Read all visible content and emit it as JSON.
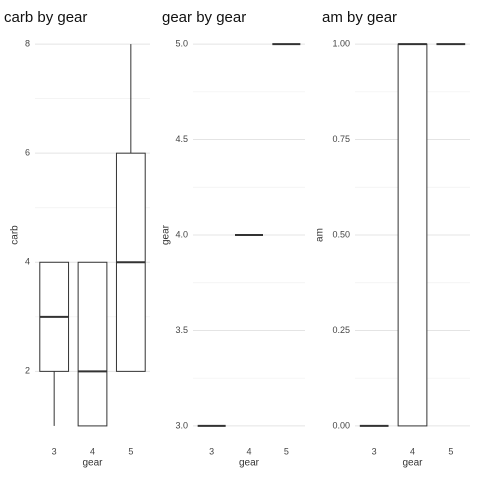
{
  "chart_data": [
    {
      "type": "box",
      "title": "carb by gear",
      "xlabel": "gear",
      "ylabel": "carb",
      "categories": [
        "3",
        "4",
        "5"
      ],
      "min": [
        1,
        1,
        2
      ],
      "q1": [
        2,
        1,
        2
      ],
      "median": [
        3,
        2,
        4
      ],
      "q3": [
        4,
        4,
        6
      ],
      "max": [
        4,
        4,
        8
      ],
      "ylim": [
        0.65,
        8.35
      ],
      "yticks": [
        2,
        4,
        6,
        8
      ],
      "grid": true,
      "color": "#333333"
    },
    {
      "type": "box",
      "title": "gear by gear",
      "xlabel": "gear",
      "ylabel": "gear",
      "categories": [
        "3",
        "4",
        "5"
      ],
      "min": [
        3,
        4,
        5
      ],
      "q1": [
        3,
        4,
        5
      ],
      "median": [
        3,
        4,
        5
      ],
      "q3": [
        3,
        4,
        5
      ],
      "max": [
        3,
        4,
        5
      ],
      "ylim": [
        2.9,
        5.1
      ],
      "yticks": [
        {
          "value": 3,
          "label": "3.0"
        },
        {
          "value": 3.5,
          "label": "3.5"
        },
        {
          "value": 4,
          "label": "4.0"
        },
        {
          "value": 4.5,
          "label": "4.5"
        },
        {
          "value": 5,
          "label": "5.0"
        }
      ],
      "grid": true,
      "color": "#333333"
    },
    {
      "type": "box",
      "title": "am by gear",
      "xlabel": "gear",
      "ylabel": "am",
      "categories": [
        "3",
        "4",
        "5"
      ],
      "min": [
        0,
        0,
        1
      ],
      "q1": [
        0,
        0,
        1
      ],
      "median": [
        0,
        1,
        1
      ],
      "q3": [
        0,
        1,
        1
      ],
      "max": [
        0,
        1,
        1
      ],
      "ylim": [
        -0.05,
        1.05
      ],
      "yticks": [
        {
          "value": 0,
          "label": "0.00"
        },
        {
          "value": 0.25,
          "label": "0.25"
        },
        {
          "value": 0.5,
          "label": "0.50"
        },
        {
          "value": 0.75,
          "label": "0.75"
        },
        {
          "value": 1,
          "label": "1.00"
        }
      ],
      "grid": true,
      "color": "#333333"
    }
  ]
}
